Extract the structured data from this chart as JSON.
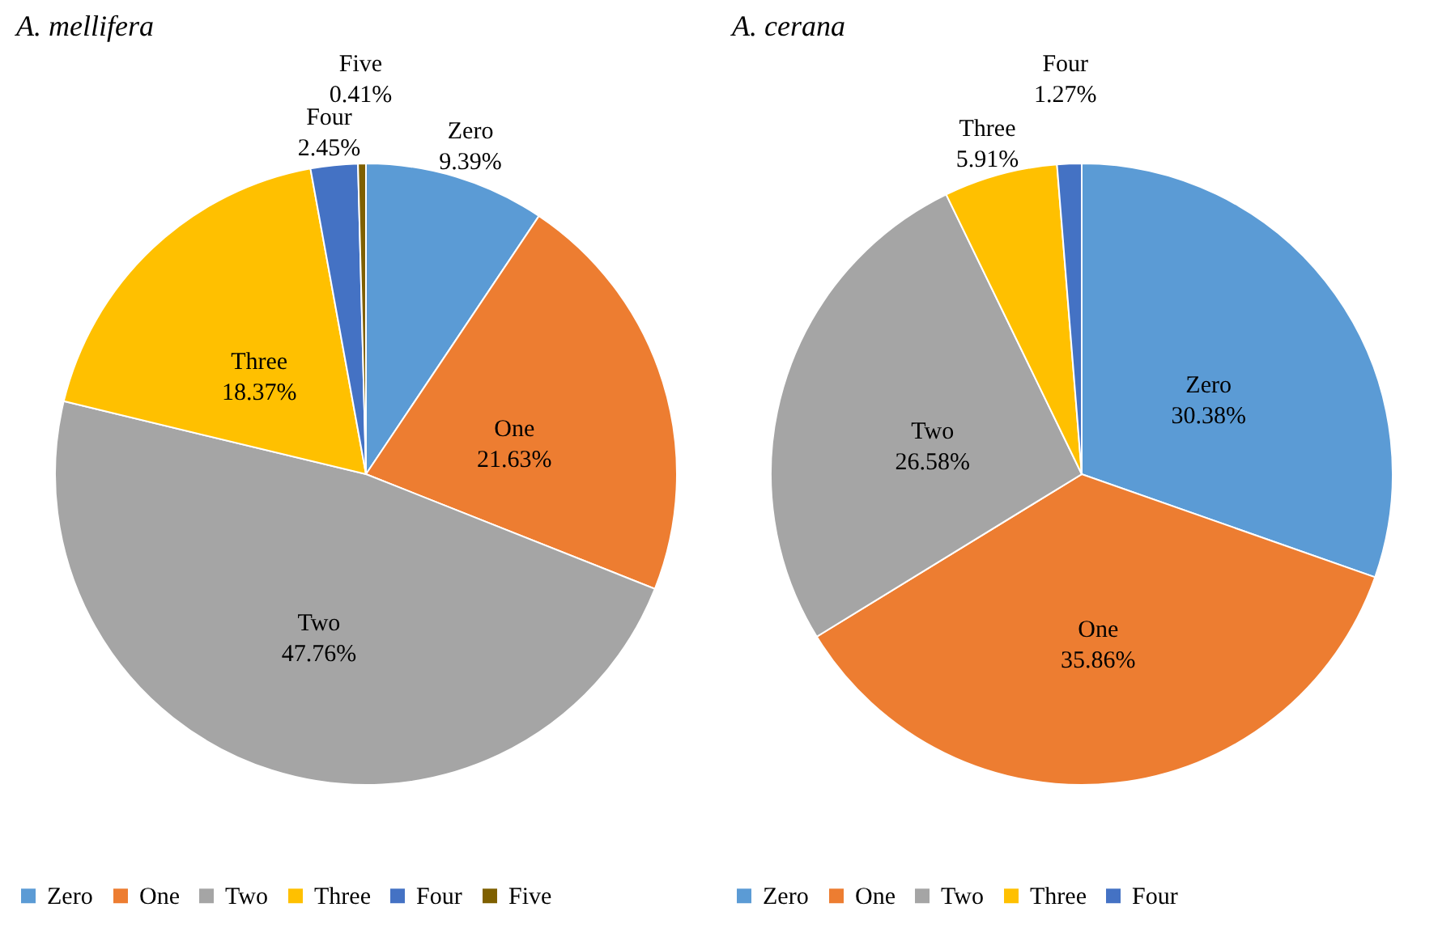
{
  "chart_data": [
    {
      "type": "pie",
      "title": "A. mellifera",
      "categories": [
        "Zero",
        "One",
        "Two",
        "Three",
        "Four",
        "Five"
      ],
      "values": [
        9.39,
        21.63,
        47.76,
        18.37,
        2.45,
        0.41
      ],
      "value_labels": [
        "9.39%",
        "21.63%",
        "47.76%",
        "18.37%",
        "2.45%",
        "0.41%"
      ],
      "colors": [
        "#5b9bd5",
        "#ed7d31",
        "#a5a5a5",
        "#ffc000",
        "#4472c4",
        "#7f6000"
      ],
      "legend": "bottom"
    },
    {
      "type": "pie",
      "title": "A. cerana",
      "categories": [
        "Zero",
        "One",
        "Two",
        "Three",
        "Four"
      ],
      "values": [
        30.38,
        35.86,
        26.58,
        5.91,
        1.27
      ],
      "value_labels": [
        "30.38%",
        "35.86%",
        "26.58%",
        "5.91%",
        "1.27%"
      ],
      "colors": [
        "#5b9bd5",
        "#ed7d31",
        "#a5a5a5",
        "#ffc000",
        "#4472c4"
      ],
      "legend": "bottom"
    }
  ]
}
